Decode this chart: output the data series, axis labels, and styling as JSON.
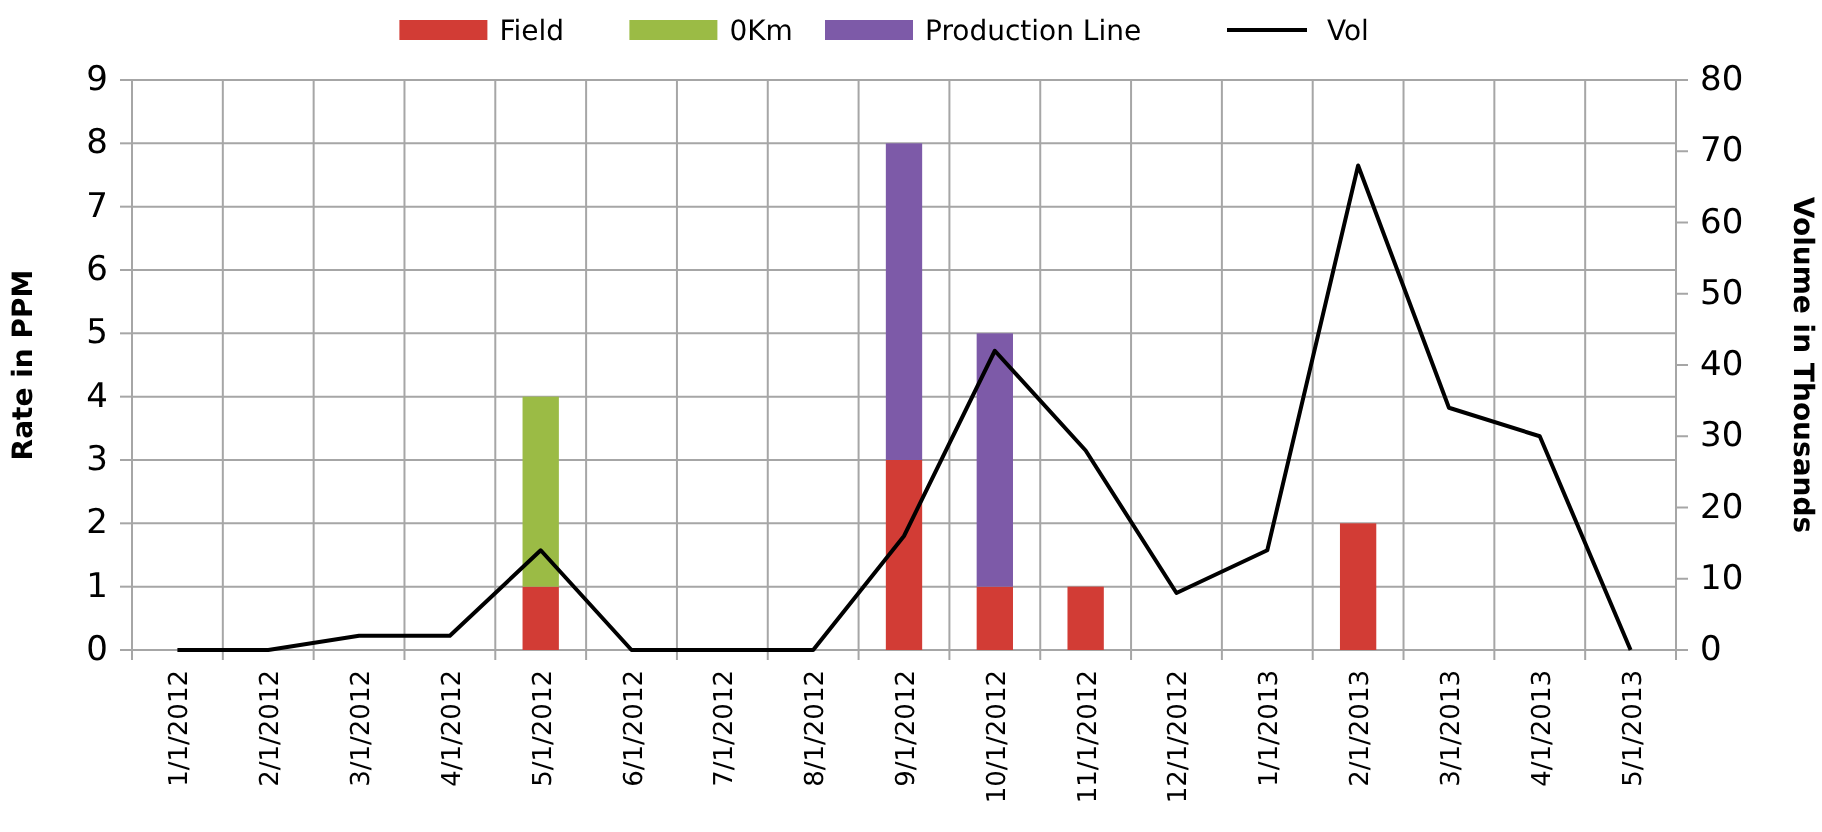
{
  "chart_data": {
    "type": "bar",
    "stacked": true,
    "ylabel": "Rate in PPM",
    "y2label": "Volume in Thousands",
    "categories": [
      "1/1/2012",
      "2/1/2012",
      "3/1/2012",
      "4/1/2012",
      "5/1/2012",
      "6/1/2012",
      "7/1/2012",
      "8/1/2012",
      "9/1/2012",
      "10/1/2012",
      "11/1/2012",
      "12/1/2012",
      "1/1/2013",
      "2/1/2013",
      "3/1/2013",
      "4/1/2013",
      "5/1/2013"
    ],
    "series": [
      {
        "name": "Field",
        "color": "#d23c35",
        "values": [
          0,
          0,
          0,
          0,
          1,
          0,
          0,
          0,
          3,
          1,
          1,
          0,
          0,
          2,
          0,
          0,
          0
        ]
      },
      {
        "name": "0Km",
        "color": "#9bbb45",
        "values": [
          0,
          0,
          0,
          0,
          3,
          0,
          0,
          0,
          0,
          0,
          0,
          0,
          0,
          0,
          0,
          0,
          0
        ]
      },
      {
        "name": "Production Line",
        "color": "#7d5aa8",
        "values": [
          0,
          0,
          0,
          0,
          0,
          0,
          0,
          0,
          5,
          4,
          0,
          0,
          0,
          0,
          0,
          0,
          0
        ]
      },
      {
        "name": "Vol",
        "type": "line",
        "axis": "y2",
        "color": "#000000",
        "values": [
          0,
          0,
          2,
          2,
          14,
          0,
          0,
          0,
          16,
          42,
          28,
          8,
          14,
          68,
          34,
          30,
          0
        ]
      }
    ],
    "ylim": [
      0,
      9
    ],
    "yticks": [
      0,
      1,
      2,
      3,
      4,
      5,
      6,
      7,
      8,
      9
    ],
    "y2lim": [
      0,
      80
    ],
    "y2ticks": [
      0,
      10,
      20,
      30,
      40,
      50,
      60,
      70,
      80
    ],
    "grid": true,
    "legend": "top",
    "marker": "none",
    "line_style": "solid"
  }
}
